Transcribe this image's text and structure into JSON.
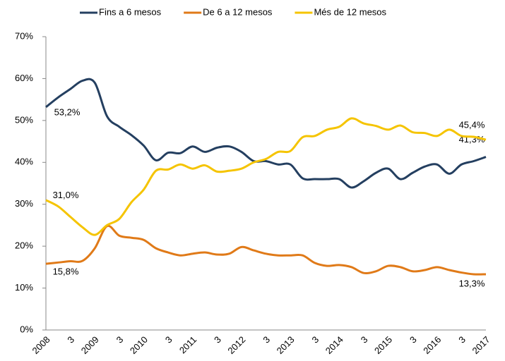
{
  "chart_data": {
    "type": "line",
    "categories": [
      "2008",
      null,
      "3",
      null,
      "2009",
      null,
      "3",
      null,
      "2010",
      null,
      "3",
      null,
      "2011",
      null,
      "3",
      null,
      "2012",
      null,
      "3",
      null,
      "2013",
      null,
      "3",
      null,
      "2014",
      null,
      "3",
      null,
      "2015",
      null,
      "3",
      null,
      "2016",
      null,
      "3",
      null,
      "2017"
    ],
    "series": [
      {
        "name": "Fins a 6 mesos",
        "color": "#243f60",
        "values": [
          53.2,
          55.5,
          57.5,
          59.5,
          59,
          51,
          48.5,
          46.5,
          44,
          40.5,
          42.3,
          42.2,
          43.8,
          42.5,
          43.5,
          43.8,
          42.5,
          40.3,
          40.3,
          39.5,
          39.5,
          36.2,
          36,
          36,
          36,
          34,
          35.5,
          37.5,
          38.5,
          36,
          37.5,
          39,
          39.5,
          37.3,
          39.5,
          40.3,
          41.3
        ],
        "value_labels": [
          "53,2%",
          null,
          null,
          null,
          null,
          null,
          null,
          null,
          null,
          null,
          null,
          null,
          null,
          null,
          null,
          null,
          null,
          null,
          null,
          null,
          null,
          null,
          null,
          null,
          null,
          null,
          null,
          null,
          null,
          null,
          null,
          null,
          null,
          null,
          null,
          null,
          "41,3%"
        ]
      },
      {
        "name": "De 6 a 12 mesos",
        "color": "#e07a18",
        "values": [
          15.8,
          16.1,
          16.4,
          16.5,
          19.5,
          24.8,
          22.5,
          22,
          21.5,
          19.5,
          18.5,
          17.8,
          18.2,
          18.5,
          18,
          18.2,
          19.8,
          19,
          18.2,
          17.8,
          17.8,
          17.8,
          16,
          15.3,
          15.5,
          15,
          13.6,
          14,
          15.3,
          15,
          14,
          14.3,
          15,
          14.3,
          13.7,
          13.3,
          13.3
        ],
        "value_labels": [
          "15,8%",
          null,
          null,
          null,
          null,
          null,
          null,
          null,
          null,
          null,
          null,
          null,
          null,
          null,
          null,
          null,
          null,
          null,
          null,
          null,
          null,
          null,
          null,
          null,
          null,
          null,
          null,
          null,
          null,
          null,
          null,
          null,
          null,
          null,
          null,
          null,
          "13,3%"
        ]
      },
      {
        "name": "Més de 12 mesos",
        "color": "#f5c400",
        "values": [
          31.0,
          29.5,
          27,
          24.5,
          22.7,
          25,
          26.5,
          30.5,
          33.5,
          38,
          38.3,
          39.5,
          38.5,
          39.3,
          37.8,
          38,
          38.5,
          40,
          40.8,
          42.5,
          42.7,
          46,
          46.3,
          47.8,
          48.5,
          50.5,
          49.3,
          48.7,
          47.8,
          48.8,
          47.2,
          47,
          46.3,
          47.8,
          46.3,
          46.1,
          45.4
        ],
        "value_labels": [
          "31,0%",
          null,
          null,
          null,
          null,
          null,
          null,
          null,
          null,
          null,
          null,
          null,
          null,
          null,
          null,
          null,
          null,
          null,
          null,
          null,
          null,
          null,
          null,
          null,
          null,
          null,
          null,
          null,
          null,
          null,
          null,
          null,
          null,
          null,
          null,
          null,
          "45,4%"
        ]
      }
    ],
    "ylim": [
      0,
      70
    ],
    "yticks": [
      {
        "value": 0,
        "label": "0%"
      },
      {
        "value": 10,
        "label": "10%"
      },
      {
        "value": 20,
        "label": "20%"
      },
      {
        "value": 30,
        "label": "30%"
      },
      {
        "value": 40,
        "label": "40%"
      },
      {
        "value": 50,
        "label": "50%"
      },
      {
        "value": 60,
        "label": "60%"
      },
      {
        "value": 70,
        "label": "70%"
      }
    ],
    "grid": false,
    "legend": "top"
  }
}
